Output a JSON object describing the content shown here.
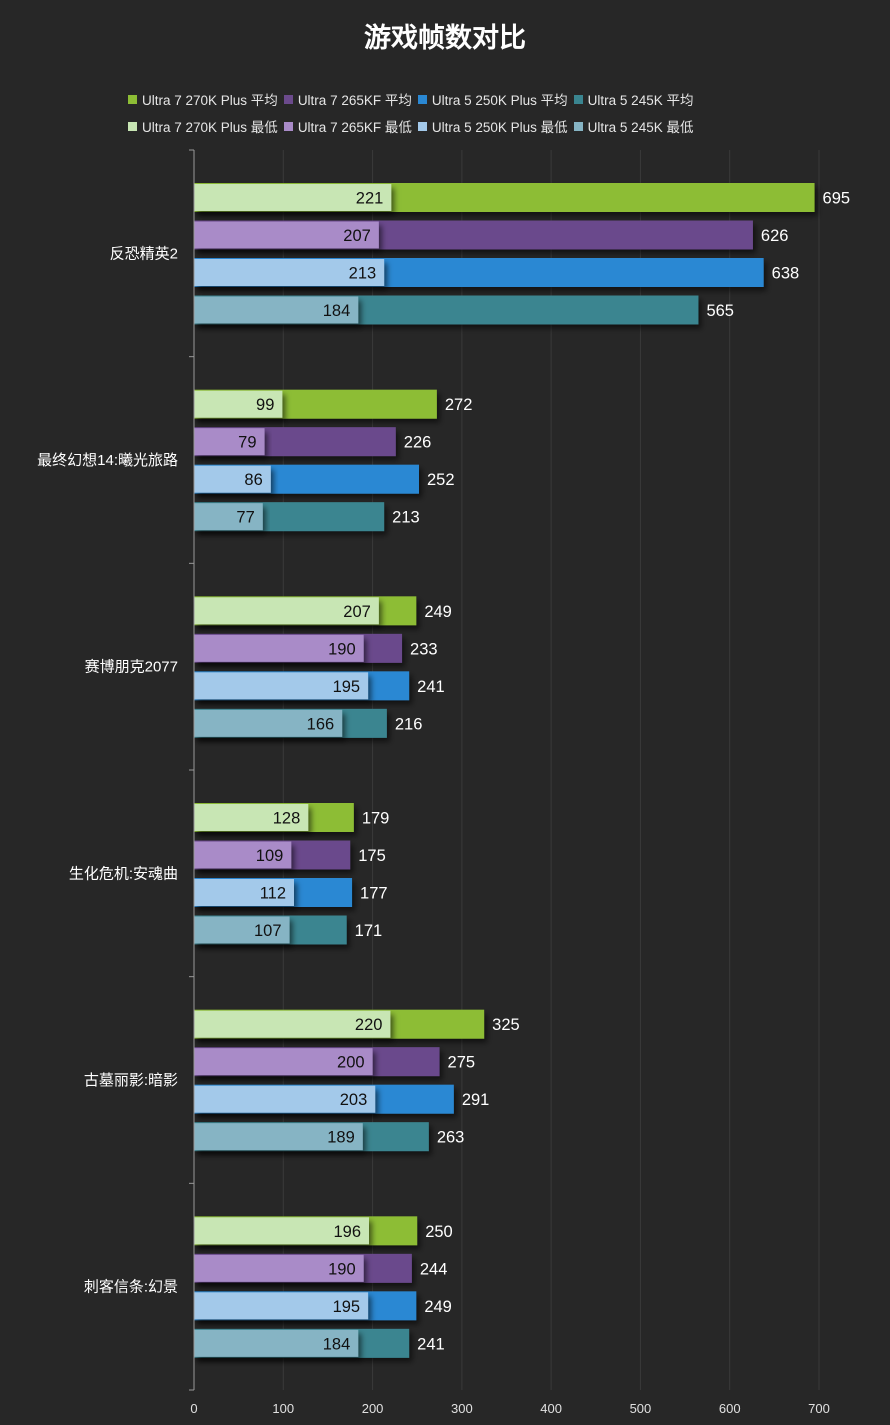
{
  "chart_data": {
    "type": "bar",
    "orientation": "horizontal",
    "title": "游戏帧数对比",
    "xlabel": "",
    "ylabel": "",
    "xlim": [
      0,
      700
    ],
    "xticks": [
      0,
      100,
      200,
      300,
      400,
      500,
      600,
      700
    ],
    "grid": true,
    "categories": [
      "反恐精英2",
      "最终幻想14:曦光旅路",
      "赛博朋克2077",
      "生化危机:安魂曲",
      "古墓丽影:暗影",
      "刺客信条:幻景"
    ],
    "series": [
      {
        "name": "Ultra 7 270K Plus 平均",
        "kind": "avg",
        "color": "#8dbd35",
        "values": [
          695,
          272,
          249,
          179,
          325,
          250
        ]
      },
      {
        "name": "Ultra 7 265KF 平均",
        "kind": "avg",
        "color": "#6b4a8c",
        "values": [
          626,
          226,
          233,
          175,
          275,
          244
        ]
      },
      {
        "name": "Ultra 5 250K Plus 平均",
        "kind": "avg",
        "color": "#2a88d3",
        "values": [
          638,
          252,
          241,
          177,
          291,
          249
        ]
      },
      {
        "name": "Ultra 5 245K 平均",
        "kind": "avg",
        "color": "#3a8590",
        "values": [
          565,
          213,
          216,
          171,
          263,
          241
        ]
      },
      {
        "name": "Ultra 7 270K Plus 最低",
        "kind": "min",
        "color": "#c8e6b4",
        "values": [
          221,
          99,
          207,
          128,
          220,
          196
        ]
      },
      {
        "name": "Ultra 7 265KF 最低",
        "kind": "min",
        "color": "#a98bc8",
        "values": [
          207,
          79,
          190,
          109,
          200,
          190
        ]
      },
      {
        "name": "Ultra 5 250K Plus 最低",
        "kind": "min",
        "color": "#a3c9ea",
        "values": [
          213,
          86,
          195,
          112,
          203,
          195
        ]
      },
      {
        "name": "Ultra 5 245K 最低",
        "kind": "min",
        "color": "#86b4c4",
        "values": [
          184,
          77,
          166,
          107,
          189,
          184
        ]
      }
    ]
  },
  "colors": {
    "background": "#272727",
    "grid": "#3a3a3a",
    "axis": "#9a9a9a",
    "text": "#ffffff",
    "min_label": "#111111"
  }
}
